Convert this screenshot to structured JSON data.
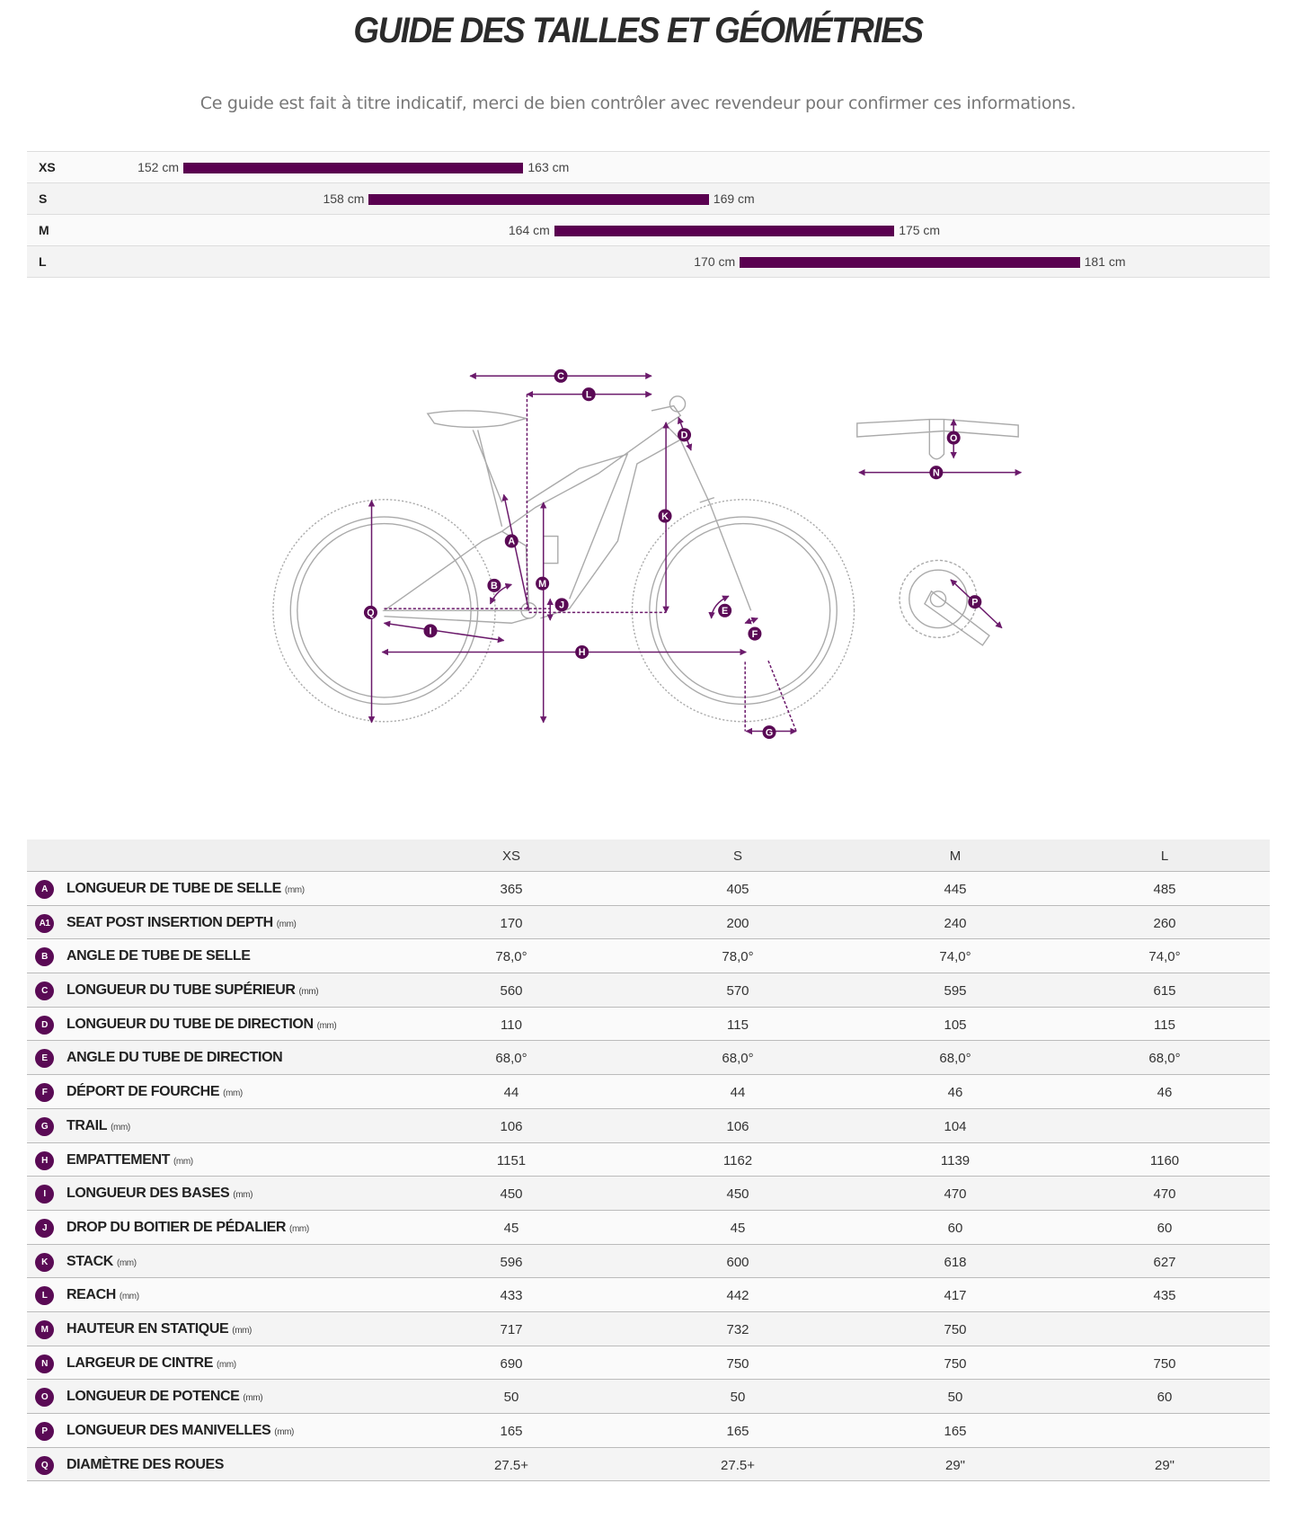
{
  "header": {
    "title": "GUIDE DES TAILLES ET GÉOMÉTRIES",
    "subtitle": "Ce guide est fait à titre indicatif, merci de bien contrôler avec revendeur pour confirmer ces informations."
  },
  "colors": {
    "accent": "#5a0050",
    "badge": "#5a0a55",
    "frame_lines": "#aaaaaa"
  },
  "rider_heights": [
    {
      "size": "XS",
      "min": 152,
      "max": 163,
      "min_label": "152 cm",
      "max_label": "163 cm"
    },
    {
      "size": "S",
      "min": 158,
      "max": 169,
      "min_label": "158 cm",
      "max_label": "169 cm"
    },
    {
      "size": "M",
      "min": 164,
      "max": 175,
      "min_label": "164 cm",
      "max_label": "175 cm"
    },
    {
      "size": "L",
      "min": 170,
      "max": 181,
      "min_label": "170 cm",
      "max_label": "181 cm"
    }
  ],
  "diagram": {
    "labels": [
      "A",
      "B",
      "C",
      "D",
      "E",
      "F",
      "G",
      "H",
      "I",
      "J",
      "K",
      "L",
      "M",
      "N",
      "O",
      "P",
      "Q"
    ]
  },
  "table": {
    "columns": [
      "XS",
      "S",
      "M",
      "L"
    ],
    "rows": [
      {
        "code": "A",
        "label": "LONGUEUR DE TUBE DE SELLE",
        "unit": "(mm)",
        "values": [
          "365",
          "405",
          "445",
          "485"
        ]
      },
      {
        "code": "A1",
        "label": "SEAT POST INSERTION DEPTH",
        "unit": "(mm)",
        "values": [
          "170",
          "200",
          "240",
          "260"
        ]
      },
      {
        "code": "B",
        "label": "ANGLE DE TUBE DE SELLE",
        "unit": "",
        "values": [
          "78,0°",
          "78,0°",
          "74,0°",
          "74,0°"
        ]
      },
      {
        "code": "C",
        "label": "LONGUEUR DU TUBE SUPÉRIEUR",
        "unit": "(mm)",
        "values": [
          "560",
          "570",
          "595",
          "615"
        ]
      },
      {
        "code": "D",
        "label": "LONGUEUR DU TUBE DE DIRECTION",
        "unit": "(mm)",
        "values": [
          "110",
          "115",
          "105",
          "115"
        ]
      },
      {
        "code": "E",
        "label": "ANGLE DU TUBE DE DIRECTION",
        "unit": "",
        "values": [
          "68,0°",
          "68,0°",
          "68,0°",
          "68,0°"
        ]
      },
      {
        "code": "F",
        "label": "DÉPORT DE FOURCHE",
        "unit": "(mm)",
        "values": [
          "44",
          "44",
          "46",
          "46"
        ]
      },
      {
        "code": "G",
        "label": "TRAIL",
        "unit": "(mm)",
        "values": [
          "106",
          "106",
          "104",
          ""
        ]
      },
      {
        "code": "H",
        "label": "EMPATTEMENT",
        "unit": "(mm)",
        "values": [
          "1151",
          "1162",
          "1139",
          "1160"
        ]
      },
      {
        "code": "I",
        "label": "LONGUEUR DES BASES",
        "unit": "(mm)",
        "values": [
          "450",
          "450",
          "470",
          "470"
        ]
      },
      {
        "code": "J",
        "label": "DROP DU BOITIER DE PÉDALIER",
        "unit": "(mm)",
        "values": [
          "45",
          "45",
          "60",
          "60"
        ]
      },
      {
        "code": "K",
        "label": "STACK",
        "unit": "(mm)",
        "values": [
          "596",
          "600",
          "618",
          "627"
        ]
      },
      {
        "code": "L",
        "label": "REACH",
        "unit": "(mm)",
        "values": [
          "433",
          "442",
          "417",
          "435"
        ]
      },
      {
        "code": "M",
        "label": "HAUTEUR EN STATIQUE",
        "unit": "(mm)",
        "values": [
          "717",
          "732",
          "750",
          ""
        ]
      },
      {
        "code": "N",
        "label": "LARGEUR DE CINTRE",
        "unit": "(mm)",
        "values": [
          "690",
          "750",
          "750",
          "750"
        ]
      },
      {
        "code": "O",
        "label": "LONGUEUR DE POTENCE",
        "unit": "(mm)",
        "values": [
          "50",
          "50",
          "50",
          "60"
        ]
      },
      {
        "code": "P",
        "label": "LONGUEUR DES MANIVELLES",
        "unit": "(mm)",
        "values": [
          "165",
          "165",
          "165",
          ""
        ]
      },
      {
        "code": "Q",
        "label": "DIAMÈTRE DES ROUES",
        "unit": "",
        "values": [
          "27.5+",
          "27.5+",
          "29\"",
          "29\""
        ]
      }
    ]
  }
}
